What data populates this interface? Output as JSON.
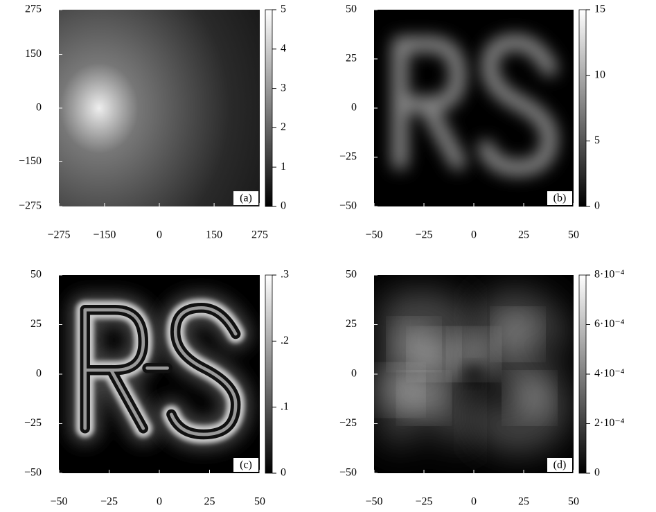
{
  "chart_data": [
    {
      "type": "heatmap",
      "panel_label": "(a)",
      "xlim": [
        -275,
        275
      ],
      "xticks": [
        {
          "value": -275,
          "label": "−275"
        },
        {
          "value": -150,
          "label": "−150"
        },
        0,
        150,
        275
      ],
      "ylim": [
        -275,
        275
      ],
      "yticks": [
        {
          "value": -275,
          "label": "−275"
        },
        {
          "value": -150,
          "label": "−150"
        },
        0,
        150,
        275
      ],
      "colorbar_lim": [
        0,
        5
      ],
      "colorbar_ticks": [
        0,
        1,
        2,
        3,
        4,
        5
      ]
    },
    {
      "type": "heatmap",
      "panel_label": "(b)",
      "xlim": [
        -50,
        50
      ],
      "xticks": [
        {
          "value": -50,
          "label": "−50"
        },
        {
          "value": -25,
          "label": "−25"
        },
        0,
        25,
        50
      ],
      "ylim": [
        -50,
        50
      ],
      "yticks": [
        {
          "value": -50,
          "label": "−50"
        },
        {
          "value": -25,
          "label": "−25"
        },
        0,
        25,
        50
      ],
      "colorbar_lim": [
        0,
        15
      ],
      "colorbar_ticks": [
        0,
        5,
        10,
        15
      ]
    },
    {
      "type": "heatmap",
      "panel_label": "(c)",
      "xlim": [
        -50,
        50
      ],
      "xticks": [
        {
          "value": -50,
          "label": "−50"
        },
        {
          "value": -25,
          "label": "−25"
        },
        0,
        25,
        50
      ],
      "ylim": [
        -50,
        50
      ],
      "yticks": [
        {
          "value": -50,
          "label": "−50"
        },
        {
          "value": -25,
          "label": "−25"
        },
        0,
        25,
        50
      ],
      "colorbar_lim": [
        0,
        0.3
      ],
      "colorbar_ticks": [
        0,
        {
          "value": 0.1,
          "label": ".1"
        },
        {
          "value": 0.2,
          "label": ".2"
        },
        {
          "value": 0.3,
          "label": ".3"
        }
      ]
    },
    {
      "type": "heatmap",
      "panel_label": "(d)",
      "xlim": [
        -50,
        50
      ],
      "xticks": [
        {
          "value": -50,
          "label": "−50"
        },
        {
          "value": -25,
          "label": "−25"
        },
        0,
        25,
        50
      ],
      "ylim": [
        -50,
        50
      ],
      "yticks": [
        {
          "value": -50,
          "label": "−50"
        },
        {
          "value": -25,
          "label": "−25"
        },
        0,
        25,
        50
      ],
      "colorbar_lim": [
        0,
        0.0008
      ],
      "colorbar_ticks": [
        0,
        {
          "value": 0.0002,
          "label": "2·10⁻⁴"
        },
        {
          "value": 0.0004,
          "label": "4·10⁻⁴"
        },
        {
          "value": 0.0006,
          "label": "6·10⁻⁴"
        },
        {
          "value": 0.0008,
          "label": "8·10⁻⁴"
        }
      ]
    }
  ]
}
